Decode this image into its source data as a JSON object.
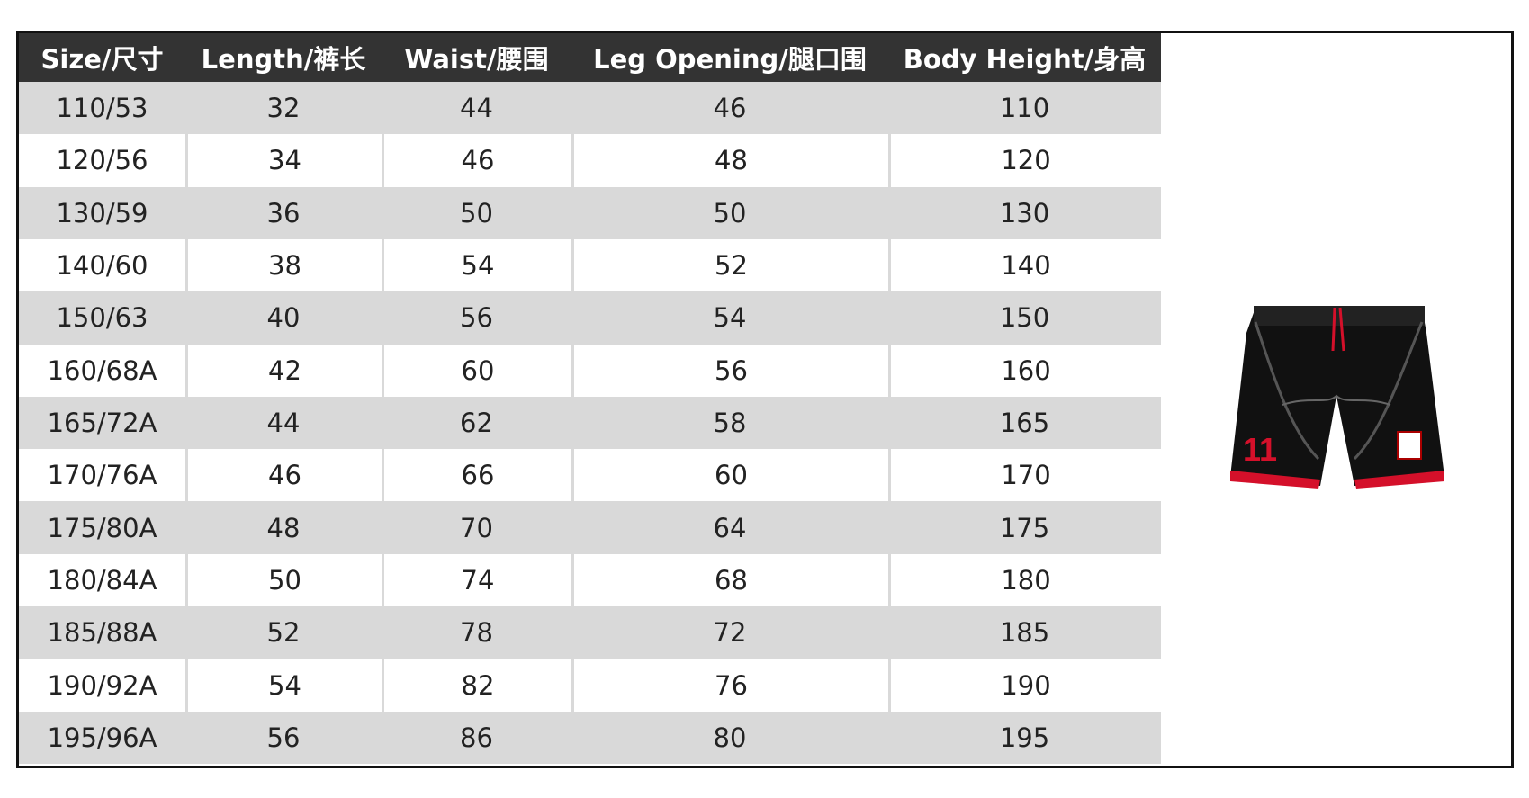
{
  "table": {
    "header": [
      "Size/尺寸",
      "Length/裤长",
      "Waist/腰围",
      "Leg Opening/腿口围",
      "Body Height/身高"
    ],
    "rows": [
      [
        "110/53",
        32,
        44,
        46,
        110
      ],
      [
        "120/56",
        34,
        46,
        48,
        120
      ],
      [
        "130/59",
        36,
        50,
        50,
        130
      ],
      [
        "140/60",
        38,
        54,
        52,
        140
      ],
      [
        "150/63",
        40,
        56,
        54,
        150
      ],
      [
        "160/68A",
        42,
        60,
        56,
        160
      ],
      [
        "165/72A",
        44,
        62,
        58,
        165
      ],
      [
        "170/76A",
        46,
        66,
        60,
        170
      ],
      [
        "175/80A",
        48,
        70,
        64,
        175
      ],
      [
        "180/84A",
        50,
        74,
        68,
        180
      ],
      [
        "185/88A",
        52,
        78,
        72,
        185
      ],
      [
        "190/92A",
        54,
        82,
        76,
        190
      ],
      [
        "195/96A",
        56,
        86,
        80,
        195
      ]
    ]
  },
  "image": {
    "number": "11"
  }
}
